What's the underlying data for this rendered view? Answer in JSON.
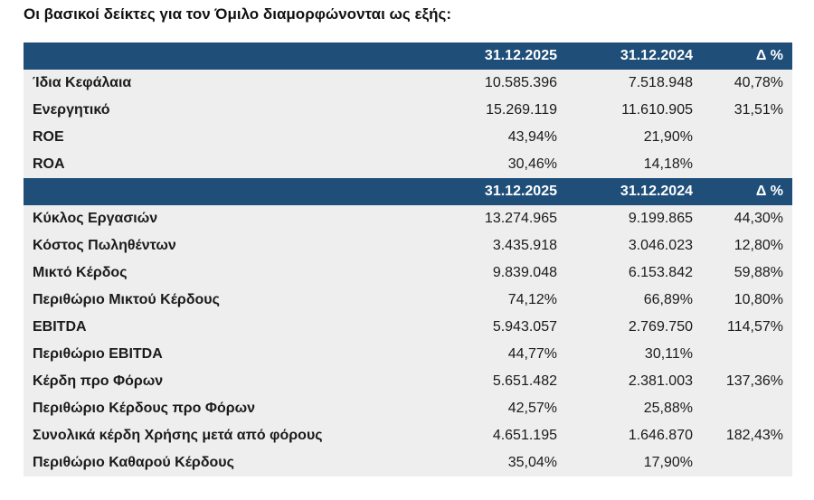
{
  "title": "Οι βασικοί δείκτες για τον Όμιλο διαμορφώνονται ως εξής:",
  "sections": [
    {
      "header": {
        "label": "",
        "col1": "31.12.2025",
        "col2": "31.12.2024",
        "col3": "Δ %"
      },
      "rows": [
        {
          "label": "Ίδια Κεφάλαια",
          "v2025": "10.585.396",
          "v2024": "7.518.948",
          "delta": "40,78%"
        },
        {
          "label": "Ενεργητικό",
          "v2025": "15.269.119",
          "v2024": "11.610.905",
          "delta": "31,51%"
        },
        {
          "label": "ROE",
          "v2025": "43,94%",
          "v2024": "21,90%",
          "delta": ""
        },
        {
          "label": "ROA",
          "v2025": "30,46%",
          "v2024": "14,18%",
          "delta": ""
        }
      ]
    },
    {
      "header": {
        "label": "",
        "col1": "31.12.2025",
        "col2": "31.12.2024",
        "col3": "Δ %"
      },
      "rows": [
        {
          "label": "Κύκλος Εργασιών",
          "v2025": "13.274.965",
          "v2024": "9.199.865",
          "delta": "44,30%"
        },
        {
          "label": "Κόστος Πωληθέντων",
          "v2025": "3.435.918",
          "v2024": "3.046.023",
          "delta": "12,80%"
        },
        {
          "label": "Μικτό Κέρδος",
          "v2025": "9.839.048",
          "v2024": "6.153.842",
          "delta": "59,88%"
        },
        {
          "label": "Περιθώριο Μικτού Κέρδους",
          "v2025": "74,12%",
          "v2024": "66,89%",
          "delta": "10,80%"
        },
        {
          "label": "EBITDA",
          "v2025": "5.943.057",
          "v2024": "2.769.750",
          "delta": "114,57%"
        },
        {
          "label": "Περιθώριο EBITDA",
          "v2025": "44,77%",
          "v2024": "30,11%",
          "delta": ""
        },
        {
          "label": "Κέρδη προ Φόρων",
          "v2025": "5.651.482",
          "v2024": "2.381.003",
          "delta": "137,36%"
        },
        {
          "label": "Περιθώριο Κέρδους προ Φόρων",
          "v2025": "42,57%",
          "v2024": "25,88%",
          "delta": ""
        },
        {
          "label": "Συνολικά κέρδη Χρήσης μετά από φόρους",
          "v2025": "4.651.195",
          "v2024": "1.646.870",
          "delta": "182,43%"
        },
        {
          "label": "Περιθώριο Καθαρού Κέρδους",
          "v2025": "35,04%",
          "v2024": "17,90%",
          "delta": ""
        }
      ]
    }
  ]
}
